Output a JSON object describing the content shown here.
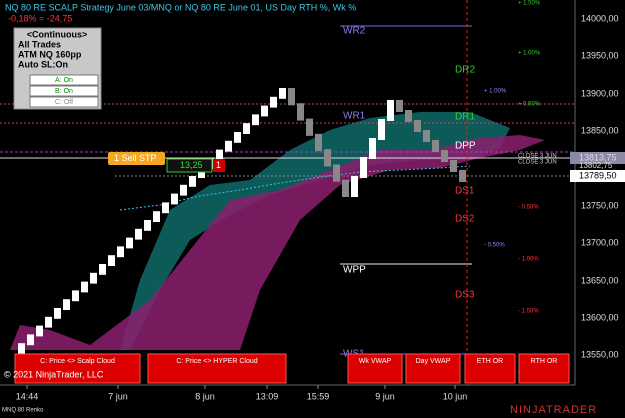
{
  "header": {
    "title": "NQ 80 RE SCALP Strategy June 03/MNQ or NQ 80 RE June 01, US Day RTH %, Wk %",
    "pnl": "-0,18% = -24,75"
  },
  "panel": {
    "lines": [
      "<Continuous>",
      "All Trades",
      "ATM NQ 160pp",
      "Auto SL:On"
    ],
    "buttons": [
      "A: On",
      "B: On",
      "C: Off"
    ]
  },
  "price_axis": [
    "14000,00",
    "13950,00",
    "13900,00",
    "13850,00",
    "13750,00",
    "13700,00",
    "13650,00",
    "13600,00",
    "13550,00"
  ],
  "price_flags": {
    "upper": "13813,75",
    "middle": "13802,75",
    "lower": "13789,50"
  },
  "time_axis": [
    "14:44",
    "7 jun",
    "8 jun",
    "13:09",
    "15:59",
    "9 jun",
    "10 jun"
  ],
  "levels": [
    "WR2",
    "DR2",
    "WR1",
    "DR1",
    "DPP",
    "DS1",
    "DS2",
    "WPP",
    "DS3",
    "WS1"
  ],
  "percent_labels": [
    "+ 1.50%",
    "+ 1.00%",
    "+ 1.00%",
    "+ 0.50%",
    "- 0.50%",
    "- 0.50%",
    "- 1.00%",
    "- 1.50%"
  ],
  "order": {
    "label": "1  Sell STP",
    "pnl": "13,25",
    "qty": "1"
  },
  "close_labels": [
    "CLOSE 3 JUN",
    "CLOSE 3 JUN",
    "CLOSE 3 JUN"
  ],
  "bottom_buttons": [
    "C: Price <> Scalp Cloud",
    "C: Price <> HYPER Cloud",
    "Wk VWAP",
    "Day VWAP",
    "ETH OR",
    "RTH OR"
  ],
  "footer": {
    "copyright": "© 2021 NinjaTrader, LLC",
    "instrument": "MNQ 80 Renko",
    "brand": "NINJATRADER"
  }
}
